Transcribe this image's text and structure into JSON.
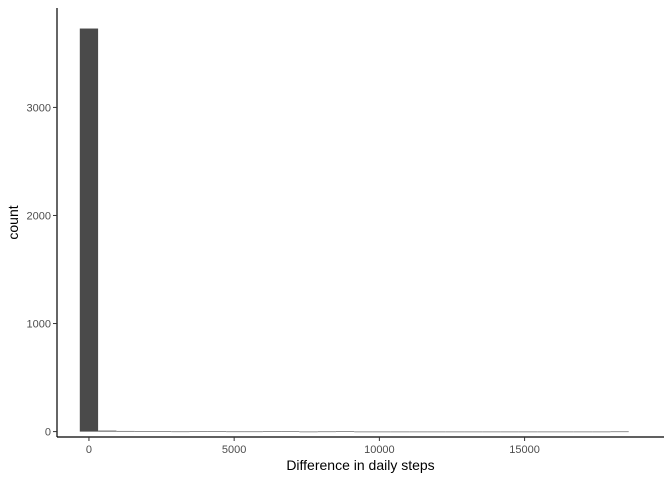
{
  "chart_data": {
    "type": "bar",
    "subtype": "histogram",
    "title": "",
    "xlabel": "Difference in daily steps",
    "ylabel": "count",
    "xlim": [
      -1100,
      19800
    ],
    "ylim": [
      -50,
      3920
    ],
    "x_ticks": [
      0,
      5000,
      10000,
      15000
    ],
    "x_tick_labels": [
      "0",
      "5000",
      "10000",
      "15000"
    ],
    "y_ticks": [
      0,
      1000,
      2000,
      3000
    ],
    "y_tick_labels": [
      "0",
      "1000",
      "2000",
      "3000"
    ],
    "grid": false,
    "bin_width": 630,
    "bins": [
      {
        "x": 0,
        "count": 3730
      },
      {
        "x": 630,
        "count": 9
      },
      {
        "x": 1260,
        "count": 6
      },
      {
        "x": 1890,
        "count": 5
      },
      {
        "x": 2520,
        "count": 2
      },
      {
        "x": 3150,
        "count": 1
      },
      {
        "x": 3780,
        "count": 4
      },
      {
        "x": 4410,
        "count": 3
      },
      {
        "x": 5040,
        "count": 1
      },
      {
        "x": 5670,
        "count": 1
      },
      {
        "x": 6300,
        "count": 3
      },
      {
        "x": 6930,
        "count": 3
      },
      {
        "x": 7560,
        "count": 0
      },
      {
        "x": 8190,
        "count": 1
      },
      {
        "x": 8820,
        "count": 2
      },
      {
        "x": 9450,
        "count": 0
      },
      {
        "x": 10080,
        "count": 0
      },
      {
        "x": 10710,
        "count": 0
      },
      {
        "x": 11340,
        "count": 0
      },
      {
        "x": 11970,
        "count": 0
      },
      {
        "x": 12600,
        "count": 0
      },
      {
        "x": 13230,
        "count": 0
      },
      {
        "x": 13860,
        "count": 0
      },
      {
        "x": 14490,
        "count": 0
      },
      {
        "x": 15120,
        "count": 0
      },
      {
        "x": 15750,
        "count": 0
      },
      {
        "x": 16380,
        "count": 0
      },
      {
        "x": 17010,
        "count": 0
      },
      {
        "x": 17640,
        "count": 0
      },
      {
        "x": 18270,
        "count": 1
      }
    ],
    "colors": {
      "bar": "#4a4a4a",
      "axis": "#000000",
      "tick_label": "#4d4d4d",
      "background": "#ffffff"
    }
  }
}
